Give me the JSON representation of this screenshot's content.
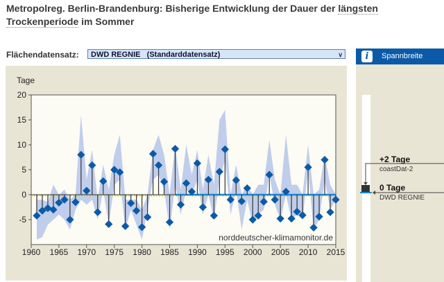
{
  "title": {
    "part1": "Metropolreg. Berlin-Brandenburg: Bisherige Entwicklung der Dauer der ",
    "part2": "längsten",
    "part3": "Trockenperiode",
    "part4": " im Sommer"
  },
  "dataset": {
    "label": "Flächendatensatz:",
    "value": "DWD REGNIE   (Standarddatensatz)"
  },
  "range_panel": {
    "header": "Spannbreite",
    "entries": [
      {
        "value": "+2 Tage",
        "source": "coastDat-2"
      },
      {
        "value": "0 Tage",
        "source": "DWD REGNIE"
      }
    ]
  },
  "colors": {
    "marker": "#0a5aa8",
    "band": "#b9c8ea",
    "header": "#0b5aa8",
    "zero_line": "#1a88d8",
    "ref_line": "#d8c800"
  },
  "chart_data": {
    "type": "scatter",
    "ylabel": "Tage",
    "xlim": [
      1960,
      2015
    ],
    "ylim": [
      -10,
      20
    ],
    "xticks": [
      1960,
      1965,
      1970,
      1975,
      1980,
      1985,
      1990,
      1995,
      2000,
      2005,
      2010,
      2015
    ],
    "yticks": [
      20,
      15,
      10,
      5,
      0,
      -5
    ],
    "watermark": "norddeutscher-klimamonitor.de",
    "x": [
      1961,
      1962,
      1963,
      1964,
      1965,
      1966,
      1967,
      1968,
      1969,
      1970,
      1971,
      1972,
      1973,
      1974,
      1975,
      1976,
      1977,
      1978,
      1979,
      1980,
      1981,
      1982,
      1983,
      1984,
      1985,
      1986,
      1987,
      1988,
      1989,
      1990,
      1991,
      1992,
      1993,
      1994,
      1995,
      1996,
      1997,
      1998,
      1999,
      2000,
      2001,
      2002,
      2003,
      2004,
      2005,
      2006,
      2007,
      2008,
      2009,
      2010,
      2011,
      2012,
      2013,
      2014,
      2015
    ],
    "values": [
      -4.2,
      -3.2,
      -2.7,
      -3.0,
      -1.6,
      -1.0,
      -5.0,
      -1.5,
      8.0,
      0.8,
      5.9,
      -3.5,
      2.7,
      -5.9,
      5.0,
      4.5,
      -6.3,
      -1.7,
      -3.2,
      -6.5,
      -4.5,
      8.2,
      5.9,
      2.6,
      -5.5,
      9.2,
      -2.0,
      2.3,
      0.6,
      6.3,
      -2.5,
      3.0,
      -4.2,
      4.6,
      9.1,
      -1.0,
      2.9,
      -1.3,
      1.3,
      -5.0,
      -4.2,
      -1.4,
      4.0,
      -1.0,
      -4.8,
      0.6,
      -4.8,
      -3.4,
      -4.1,
      5.5,
      -6.6,
      -4.4,
      7.0,
      -3.5,
      -1.0
    ],
    "band_high": [
      -1,
      -1,
      -1.5,
      2,
      0,
      1,
      -1,
      0,
      16,
      3,
      9,
      -1,
      6,
      1,
      8,
      12,
      -1,
      -1,
      -1,
      -3,
      0,
      9,
      12,
      8,
      0,
      10,
      1,
      10,
      4,
      9,
      1,
      8,
      2,
      15,
      17,
      0,
      6,
      0,
      2,
      0,
      2,
      2,
      11,
      3,
      0,
      12,
      2,
      2,
      0,
      10,
      0,
      1,
      8,
      2,
      0
    ],
    "band_low": [
      -9,
      -8.5,
      -6,
      -5,
      -4,
      -5,
      -7,
      -3,
      -1,
      -2,
      -1,
      -5,
      1,
      -6,
      2,
      3,
      -7,
      -3,
      -6,
      -9,
      -3,
      3,
      4,
      1,
      -7,
      2,
      -4,
      1,
      0,
      3,
      -4,
      0,
      -5,
      3,
      7,
      -4,
      1,
      -7,
      -1,
      -6,
      -4,
      -3,
      4,
      -2,
      -5,
      0,
      -5,
      -4,
      -5,
      5,
      -7,
      -5,
      3,
      -3,
      -1
    ],
    "zero_line_from": 1986
  }
}
